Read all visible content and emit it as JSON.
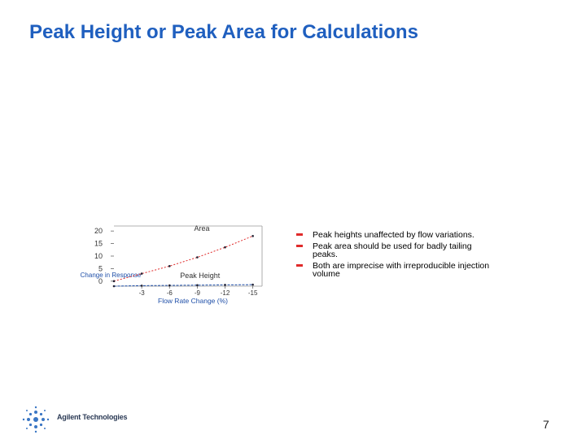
{
  "slide": {
    "title": "Peak Height or Peak Area for Calculations",
    "page_number": "7"
  },
  "bullets": [
    "Peak heights unaffected by flow variations.",
    "Peak area should be used for badly tailing peaks.",
    "Both are imprecise with irreproducible injection volume"
  ],
  "logo": {
    "text": "Agilent Technologies",
    "icon": "agilent-spark-icon"
  },
  "chart_data": {
    "type": "line",
    "title": "",
    "xlabel": "Flow Rate Change (%)",
    "ylabel": "",
    "y_left_label": "Change in Response",
    "x_ticks": [
      -3,
      -6,
      -9,
      -12,
      -15
    ],
    "y_ticks": [
      0,
      5,
      10,
      15,
      20
    ],
    "xlim": [
      0,
      -16
    ],
    "ylim": [
      -2,
      22
    ],
    "series": [
      {
        "name": "Area",
        "color": "#e02b2b",
        "x": [
          0,
          -3,
          -6,
          -9,
          -12,
          -15
        ],
        "y": [
          0,
          3,
          6,
          9.5,
          13.5,
          18
        ]
      },
      {
        "name": "Peak Height",
        "color": "#1f4fa8",
        "x": [
          0,
          -3,
          -6,
          -9,
          -12,
          -15
        ],
        "y": [
          -2,
          -1.8,
          -1.7,
          -1.6,
          -1.5,
          -1.4
        ]
      }
    ],
    "colors": {
      "area": "#e02b2b",
      "peak_height": "#1f4fa8"
    }
  }
}
